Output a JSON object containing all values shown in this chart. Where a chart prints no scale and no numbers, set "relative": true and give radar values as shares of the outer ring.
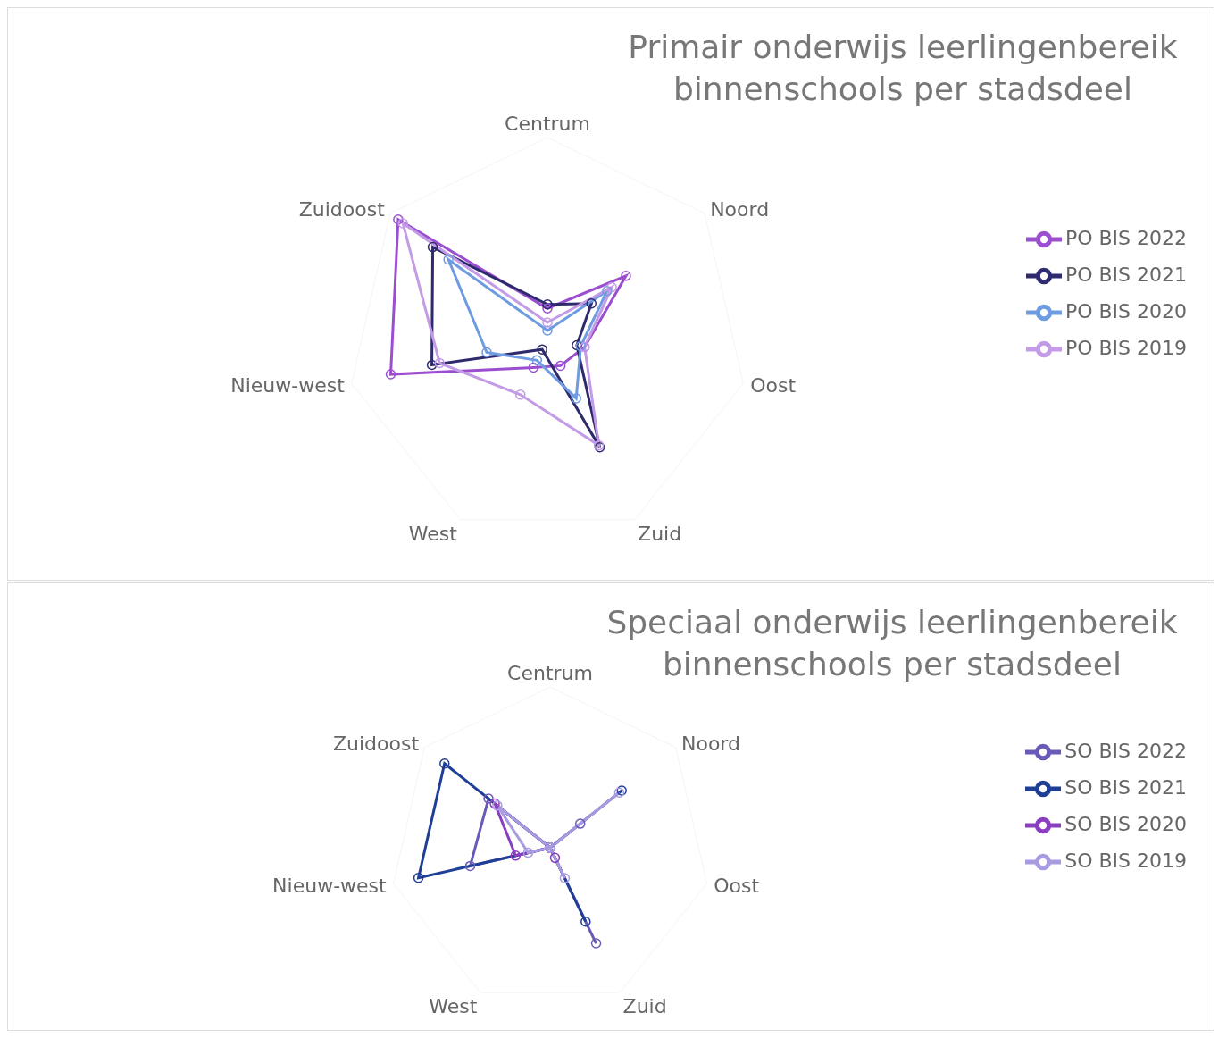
{
  "chart_data": [
    {
      "type": "radar",
      "title": "Primair onderwijs leerlingenbereik binnenschools per stadsdeel",
      "relative": true,
      "legend": "right",
      "marker": "circle",
      "categories": [
        "Centrum",
        "Noord",
        "Oost",
        "Zuid",
        "West",
        "Nieuw-west",
        "Zuidoost"
      ],
      "series": [
        {
          "name": "PO BIS 2022",
          "color": "#9b4fd0",
          "values": [
            0.15,
            0.5,
            0.19,
            0.15,
            0.16,
            0.8,
            0.95
          ]
        },
        {
          "name": "PO BIS 2021",
          "color": "#2e2a6e",
          "values": [
            0.17,
            0.28,
            0.15,
            0.6,
            0.06,
            0.59,
            0.73
          ]
        },
        {
          "name": "PO BIS 2020",
          "color": "#6f9be0",
          "values": [
            0.04,
            0.38,
            0.17,
            0.33,
            0.12,
            0.31,
            0.63
          ]
        },
        {
          "name": "PO BIS 2019",
          "color": "#c39be6",
          "values": [
            0.08,
            0.41,
            0.19,
            0.59,
            0.31,
            0.55,
            0.92
          ]
        }
      ]
    },
    {
      "type": "radar",
      "title": "Speciaal onderwijs leerlingenbereik binnenschools per stadsdeel",
      "relative": true,
      "legend": "right",
      "marker": "circle",
      "categories": [
        "Centrum",
        "Noord",
        "Oost",
        "Zuid",
        "West",
        "Nieuw-west",
        "Zuidoost"
      ],
      "series": [
        {
          "name": "SO BIS 2022",
          "color": "#6a5ab8",
          "values": [
            0,
            0.24,
            0,
            0.66,
            0,
            0.51,
            0.49
          ]
        },
        {
          "name": "SO BIS 2021",
          "color": "#1f3f96",
          "values": [
            0,
            0.57,
            0,
            0.51,
            0,
            0.84,
            0.84
          ]
        },
        {
          "name": "SO BIS 2020",
          "color": "#8a3fc0",
          "values": [
            0,
            0,
            0,
            0.07,
            0,
            0.22,
            0.44
          ]
        },
        {
          "name": "SO BIS 2019",
          "color": "#a99be0",
          "values": [
            0,
            0.55,
            0,
            0.21,
            0,
            0.14,
            0.42
          ]
        }
      ]
    }
  ]
}
